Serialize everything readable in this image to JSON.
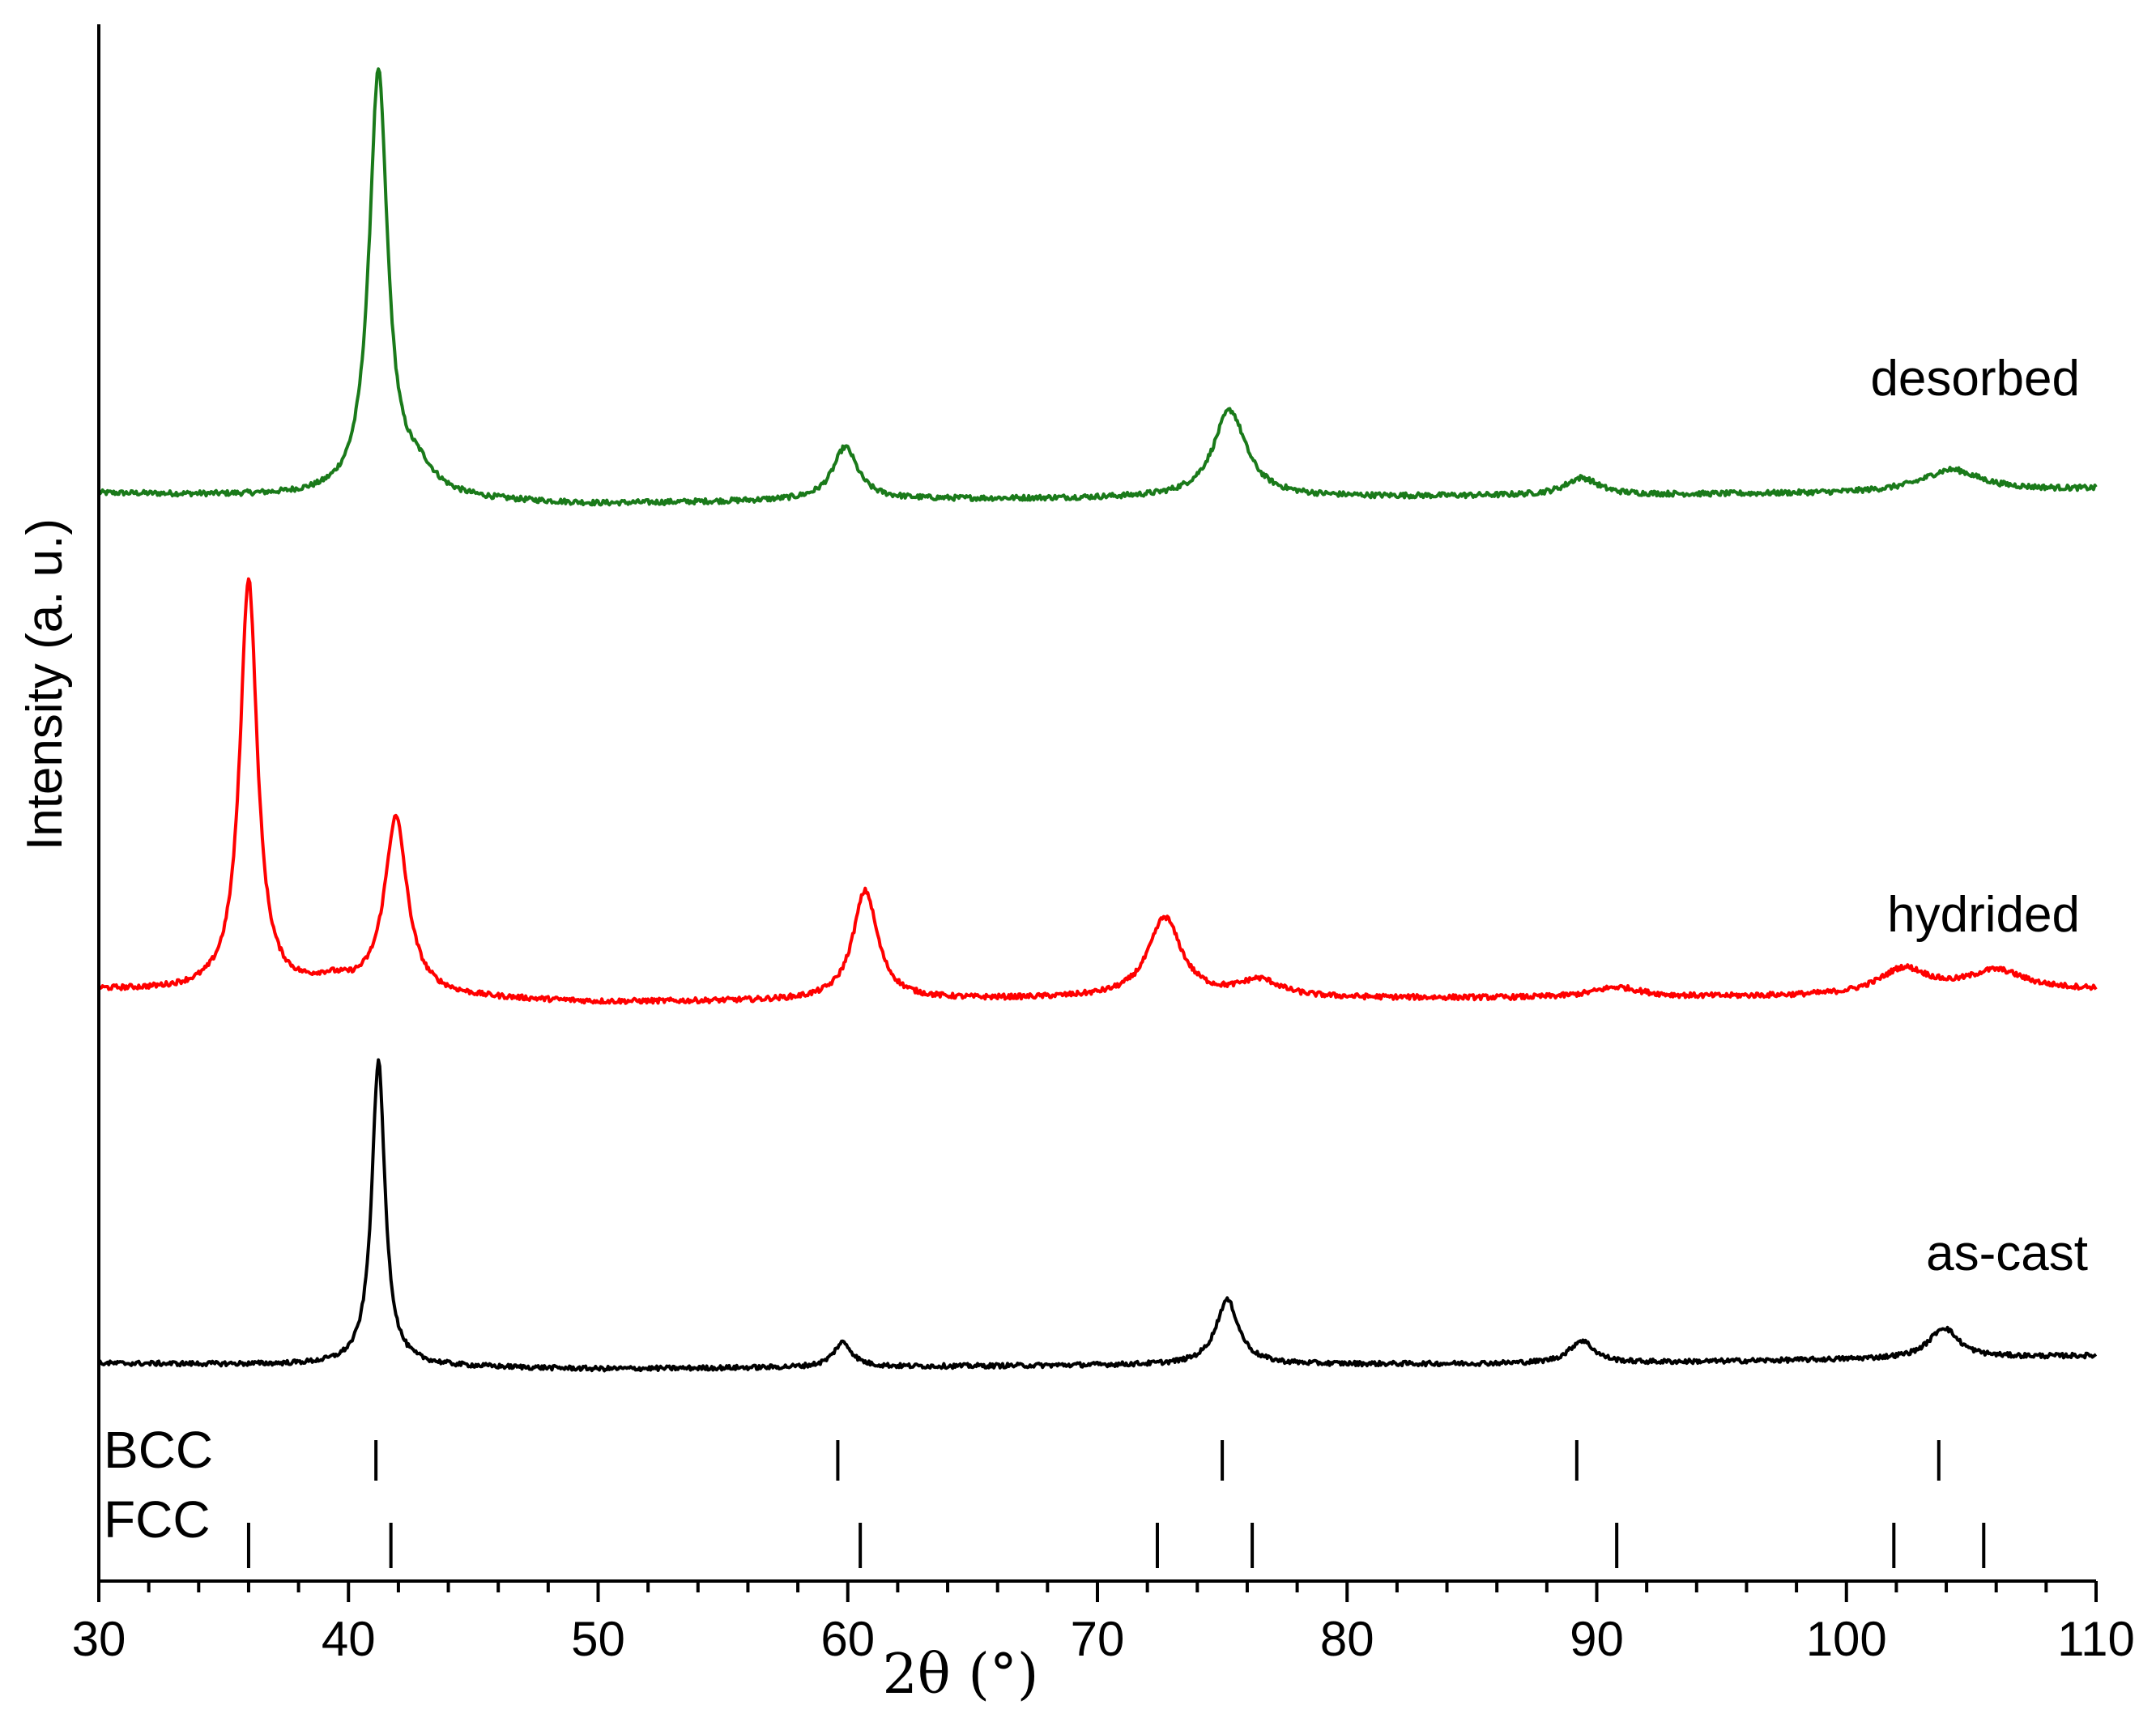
{
  "chart_data": {
    "type": "line",
    "title": "",
    "xlabel": "2θ (°)",
    "ylabel": "Intensity (a. u.)",
    "xlim": [
      30,
      110
    ],
    "xticks": [
      30,
      40,
      50,
      60,
      70,
      80,
      90,
      100,
      110
    ],
    "x_minor_step": 2,
    "y_ticks_shown": false,
    "series": [
      {
        "name": "desorbed",
        "color": "#1a7a1a",
        "baseline": 0.0,
        "noise": 0.006,
        "background": [
          [
            30,
            0.02
          ],
          [
            38,
            0.012
          ],
          [
            50,
            -0.005
          ],
          [
            60,
            0.005
          ],
          [
            70,
            0.008
          ],
          [
            90,
            0.015
          ],
          [
            100,
            0.02
          ],
          [
            110,
            0.03
          ]
        ],
        "peaks": [
          {
            "center": 41.2,
            "height": 0.97,
            "width": 0.45
          },
          {
            "center": 42.8,
            "height": 0.05,
            "width": 0.8
          },
          {
            "center": 59.9,
            "height": 0.12,
            "width": 0.6
          },
          {
            "center": 75.3,
            "height": 0.2,
            "width": 0.8
          },
          {
            "center": 89.4,
            "height": 0.04,
            "width": 0.8
          },
          {
            "center": 104.2,
            "height": 0.05,
            "width": 1.4
          }
        ]
      },
      {
        "name": "hydrided",
        "color": "#ff0000",
        "baseline": 0.0,
        "noise": 0.006,
        "background": [
          [
            30,
            0.03
          ],
          [
            38,
            0.02
          ],
          [
            50,
            0.0
          ],
          [
            60,
            0.004
          ],
          [
            70,
            0.01
          ],
          [
            90,
            0.01
          ],
          [
            100,
            0.015
          ],
          [
            110,
            0.03
          ]
        ],
        "peaks": [
          {
            "center": 36.0,
            "height": 0.98,
            "width": 0.42
          },
          {
            "center": 39.3,
            "height": 0.025,
            "width": 1.0
          },
          {
            "center": 41.9,
            "height": 0.42,
            "width": 0.55
          },
          {
            "center": 60.7,
            "height": 0.26,
            "width": 0.6
          },
          {
            "center": 72.7,
            "height": 0.19,
            "width": 0.8
          },
          {
            "center": 76.5,
            "height": 0.04,
            "width": 1.0
          },
          {
            "center": 90.8,
            "height": 0.025,
            "width": 1.2
          },
          {
            "center": 102.3,
            "height": 0.06,
            "width": 1.2
          },
          {
            "center": 106.0,
            "height": 0.05,
            "width": 1.4
          }
        ]
      },
      {
        "name": "as-cast",
        "color": "#000000",
        "baseline": 0.0,
        "noise": 0.006,
        "background": [
          [
            30,
            0.01
          ],
          [
            40,
            0.005
          ],
          [
            50,
            -0.005
          ],
          [
            60,
            0.0
          ],
          [
            70,
            0.005
          ],
          [
            90,
            0.01
          ],
          [
            100,
            0.02
          ],
          [
            110,
            0.03
          ]
        ],
        "peaks": [
          {
            "center": 41.2,
            "height": 0.8,
            "width": 0.32
          },
          {
            "center": 59.8,
            "height": 0.065,
            "width": 0.45
          },
          {
            "center": 75.2,
            "height": 0.17,
            "width": 0.55
          },
          {
            "center": 89.4,
            "height": 0.06,
            "width": 0.6
          },
          {
            "center": 103.9,
            "height": 0.08,
            "width": 0.7
          }
        ]
      }
    ],
    "reference_markers": [
      {
        "name": "BCC",
        "positions": [
          41.1,
          59.6,
          75.0,
          89.2,
          103.7
        ]
      },
      {
        "name": "FCC",
        "positions": [
          36.0,
          41.7,
          60.5,
          72.4,
          76.2,
          90.8,
          101.9,
          105.5
        ]
      }
    ]
  }
}
